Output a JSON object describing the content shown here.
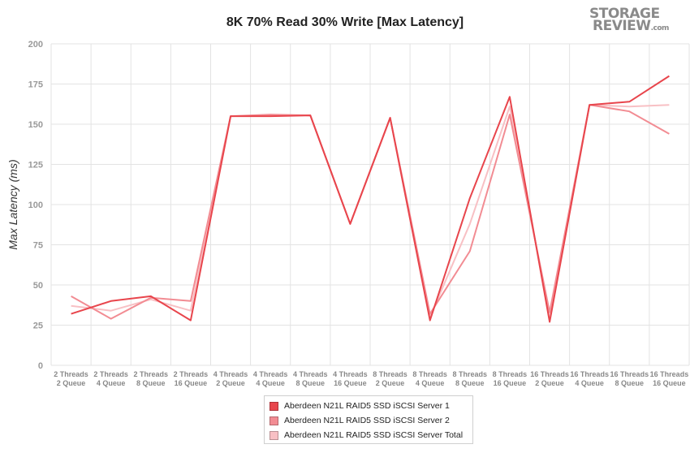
{
  "logo": {
    "line1": "STORAGE",
    "line2": "REVIEW",
    "suffix": ".com"
  },
  "chart_data": {
    "type": "line",
    "title": "8K 70% Read 30% Write [Max Latency]",
    "xlabel": "",
    "ylabel": "Max Latency (ms)",
    "ylim": [
      0,
      200
    ],
    "yticks": [
      0,
      25,
      50,
      75,
      100,
      125,
      150,
      175,
      200
    ],
    "grid": true,
    "legend_position": "bottom",
    "categories": [
      [
        "2 Threads",
        "2 Queue"
      ],
      [
        "2 Threads",
        "4 Queue"
      ],
      [
        "2 Threads",
        "8 Queue"
      ],
      [
        "2 Threads",
        "16 Queue"
      ],
      [
        "4 Threads",
        "2 Queue"
      ],
      [
        "4 Threads",
        "4 Queue"
      ],
      [
        "4 Threads",
        "8 Queue"
      ],
      [
        "4 Threads",
        "16 Queue"
      ],
      [
        "8 Threads",
        "2 Queue"
      ],
      [
        "8 Threads",
        "4 Queue"
      ],
      [
        "8 Threads",
        "8 Queue"
      ],
      [
        "8 Threads",
        "16 Queue"
      ],
      [
        "16 Threads",
        "2 Queue"
      ],
      [
        "16 Threads",
        "4 Queue"
      ],
      [
        "16 Threads",
        "8 Queue"
      ],
      [
        "16 Threads",
        "16 Queue"
      ]
    ],
    "series": [
      {
        "name": "Aberdeen N21L RAID5 SSD iSCSI Server 1",
        "color": "#e8454c",
        "values": [
          32,
          40,
          43,
          28,
          155,
          155,
          155.5,
          88,
          154,
          28,
          104,
          167,
          27,
          162,
          164,
          180
        ]
      },
      {
        "name": "Aberdeen N21L RAID5 SSD iSCSI Server 2",
        "color": "#f28c93",
        "values": [
          43,
          29,
          42,
          40,
          155,
          156,
          155.5,
          88,
          154,
          32,
          71,
          156,
          33,
          162,
          158,
          144
        ]
      },
      {
        "name": "Aberdeen N21L RAID5 SSD iSCSI Server Total",
        "color": "#f8c0c4",
        "values": [
          37,
          34,
          41,
          34,
          155,
          155.5,
          155.5,
          88,
          154,
          30,
          88,
          161,
          30,
          162,
          161,
          162
        ]
      }
    ]
  }
}
